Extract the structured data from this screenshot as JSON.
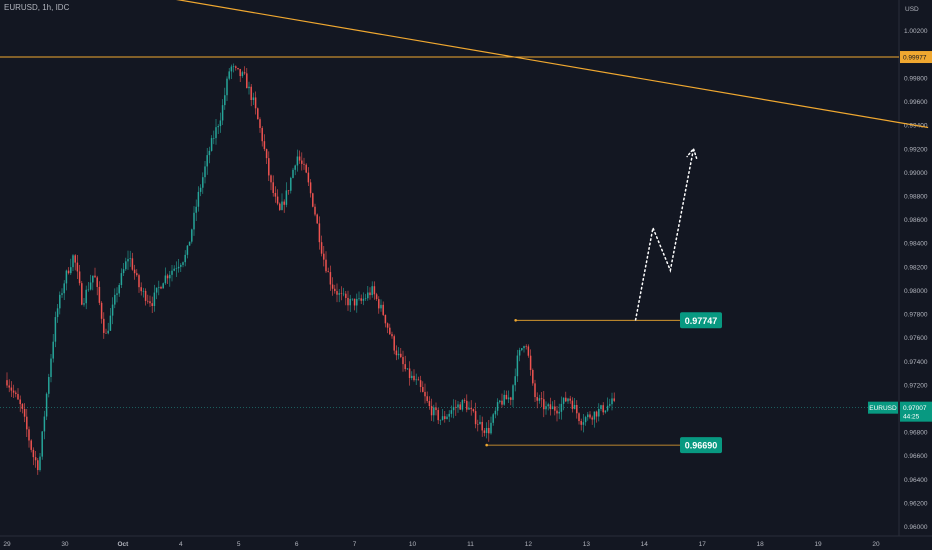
{
  "header": {
    "symbol_line": "EURUSD, 1h, IDC"
  },
  "axis": {
    "currency": "USD"
  },
  "chart_data": {
    "type": "candlestick",
    "symbol": "EURUSD",
    "timeframe": "1h",
    "source": "IDC",
    "ylim": [
      0.9592,
      1.0046
    ],
    "yticks": [
      "1.00200",
      "0.99800",
      "0.99600",
      "0.99400",
      "0.99200",
      "0.99000",
      "0.98800",
      "0.98600",
      "0.98400",
      "0.98200",
      "0.98000",
      "0.97800",
      "0.97600",
      "0.97400",
      "0.97200",
      "0.96800",
      "0.96600",
      "0.96400",
      "0.96200",
      "0.96000"
    ],
    "xticks": [
      "29",
      "30",
      "Oct",
      "4",
      "5",
      "6",
      "7",
      "10",
      "11",
      "12",
      "13",
      "14",
      "17",
      "18",
      "19",
      "20"
    ],
    "xtick_pos": [
      0,
      1,
      2,
      3,
      4,
      5,
      6,
      7,
      8,
      9,
      10,
      11,
      12,
      13,
      14,
      15
    ],
    "levels": [
      {
        "label": "0.99977",
        "value": 0.99977
      },
      {
        "label": "0.97747",
        "value": 0.97747
      },
      {
        "label": "0.96690",
        "value": 0.9669
      }
    ],
    "current": {
      "symbol": "EURUSD",
      "price": "0.97007",
      "countdown": "44:25",
      "value": 0.97007
    },
    "trendline": [
      [
        2.5,
        1.005
      ],
      [
        15.9,
        0.9938
      ]
    ],
    "projection": [
      [
        10.85,
        0.9775
      ],
      [
        11.15,
        0.9853
      ],
      [
        11.45,
        0.9817
      ],
      [
        11.85,
        0.992
      ]
    ],
    "candles_anchor": [
      [
        0.0,
        0.9724
      ],
      [
        0.25,
        0.97
      ],
      [
        0.45,
        0.966
      ],
      [
        0.55,
        0.965
      ],
      [
        0.7,
        0.972
      ],
      [
        0.85,
        0.978
      ],
      [
        1.0,
        0.981
      ],
      [
        1.15,
        0.983
      ],
      [
        1.3,
        0.979
      ],
      [
        1.5,
        0.9815
      ],
      [
        1.7,
        0.976
      ],
      [
        1.9,
        0.98
      ],
      [
        2.1,
        0.983
      ],
      [
        2.3,
        0.98
      ],
      [
        2.5,
        0.979
      ],
      [
        2.7,
        0.981
      ],
      [
        2.9,
        0.982
      ],
      [
        3.1,
        0.983
      ],
      [
        3.3,
        0.988
      ],
      [
        3.5,
        0.992
      ],
      [
        3.7,
        0.995
      ],
      [
        3.85,
        0.999
      ],
      [
        3.95,
        0.9985
      ],
      [
        4.1,
        0.998
      ],
      [
        4.25,
        0.996
      ],
      [
        4.4,
        0.993
      ],
      [
        4.55,
        0.989
      ],
      [
        4.7,
        0.9865
      ],
      [
        4.85,
        0.9885
      ],
      [
        5.0,
        0.9915
      ],
      [
        5.15,
        0.99
      ],
      [
        5.3,
        0.987
      ],
      [
        5.45,
        0.983
      ],
      [
        5.6,
        0.9805
      ],
      [
        5.75,
        0.9795
      ],
      [
        5.9,
        0.979
      ],
      [
        6.1,
        0.979
      ],
      [
        6.3,
        0.98
      ],
      [
        6.5,
        0.978
      ],
      [
        6.7,
        0.975
      ],
      [
        6.9,
        0.973
      ],
      [
        7.1,
        0.972
      ],
      [
        7.3,
        0.97
      ],
      [
        7.5,
        0.969
      ],
      [
        7.7,
        0.97
      ],
      [
        7.9,
        0.9705
      ],
      [
        8.1,
        0.969
      ],
      [
        8.3,
        0.968
      ],
      [
        8.5,
        0.9705
      ],
      [
        8.7,
        0.971
      ],
      [
        8.8,
        0.974
      ],
      [
        8.95,
        0.976
      ],
      [
        9.1,
        0.971
      ],
      [
        9.3,
        0.97
      ],
      [
        9.5,
        0.97
      ],
      [
        9.7,
        0.971
      ],
      [
        9.9,
        0.969
      ],
      [
        10.1,
        0.9695
      ],
      [
        10.3,
        0.97
      ],
      [
        10.45,
        0.9705
      ],
      [
        10.5,
        0.9701
      ]
    ]
  }
}
